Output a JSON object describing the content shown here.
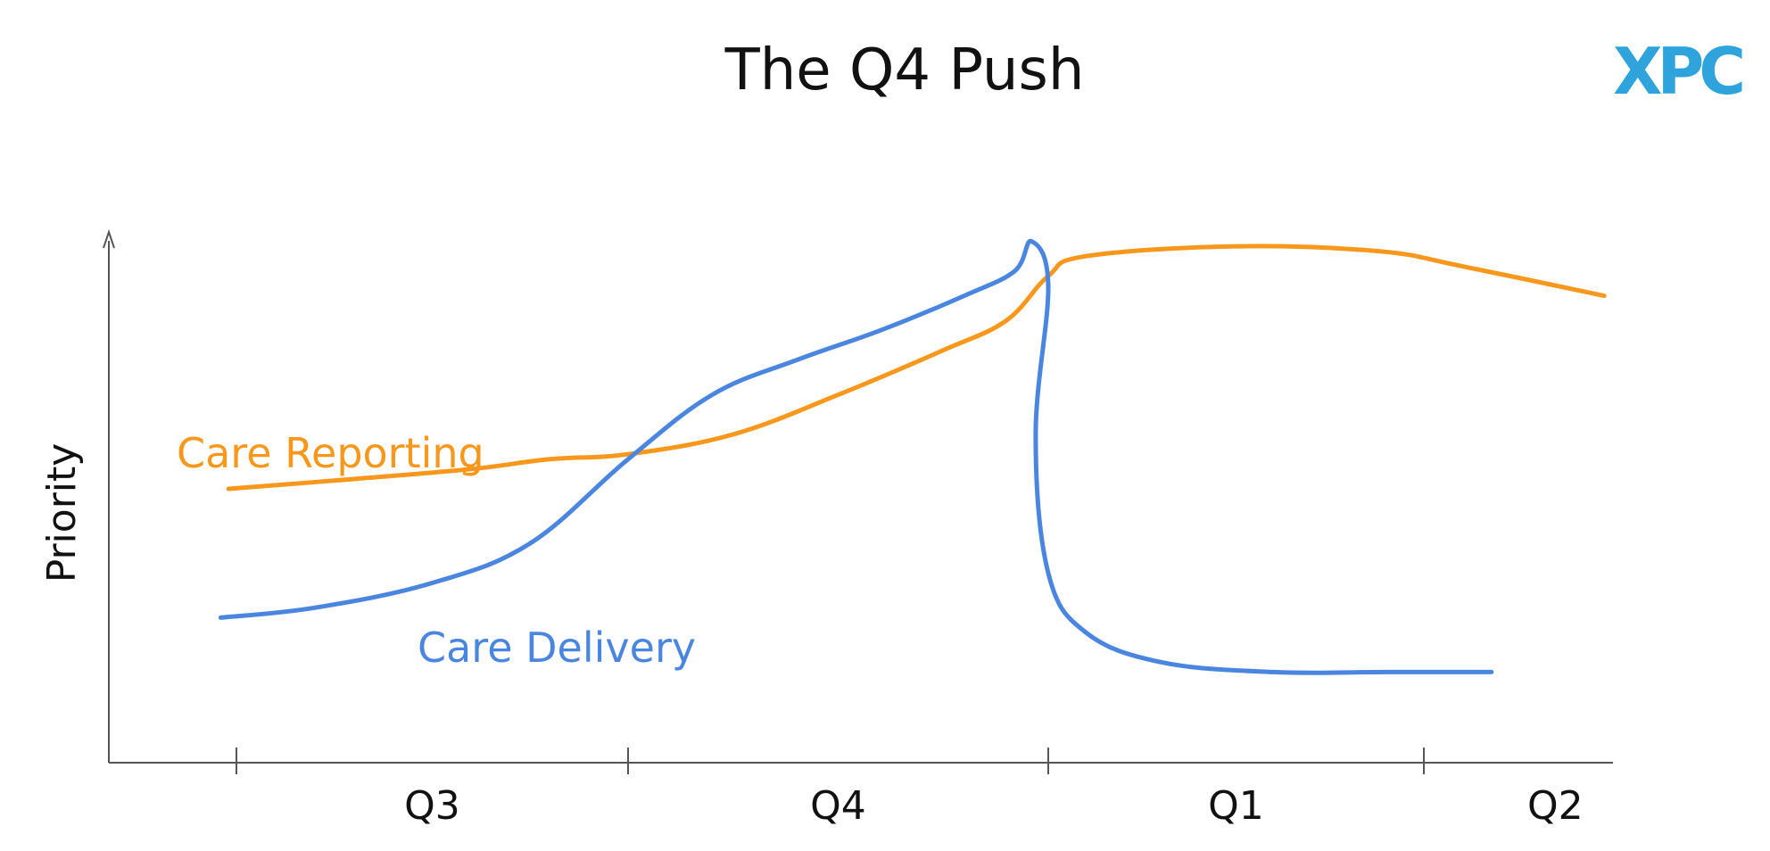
{
  "logo": {
    "text": "XPC",
    "color": "#2ea3dc"
  },
  "chart_data": {
    "type": "line",
    "title": "The Q4 Push",
    "xlabel": "",
    "ylabel": "Priority",
    "categories": [
      "Q3",
      "Q4",
      "Q1",
      "Q2"
    ],
    "x_boundaries": [
      0,
      1,
      2,
      3
    ],
    "xlim": [
      -0.33,
      3.48
    ],
    "ylim": [
      0,
      1
    ],
    "grid": false,
    "legend": "inline labels",
    "series": [
      {
        "name": "Care Reporting",
        "color": "#f7981d",
        "points": [
          [
            -0.02,
            0.49
          ],
          [
            0.3,
            0.51
          ],
          [
            0.6,
            0.53
          ],
          [
            0.8,
            0.55
          ],
          [
            1.0,
            0.56
          ],
          [
            1.25,
            0.6
          ],
          [
            1.5,
            0.68
          ],
          [
            1.75,
            0.77
          ],
          [
            1.9,
            0.83
          ],
          [
            2.0,
            0.92
          ],
          [
            2.1,
            0.96
          ],
          [
            2.5,
            0.98
          ],
          [
            2.88,
            0.97
          ],
          [
            3.1,
            0.94
          ],
          [
            3.48,
            0.88
          ]
        ]
      },
      {
        "name": "Care Delivery",
        "color": "#4a86e0",
        "points": [
          [
            -0.04,
            0.23
          ],
          [
            0.2,
            0.25
          ],
          [
            0.5,
            0.3
          ],
          [
            0.75,
            0.38
          ],
          [
            1.0,
            0.55
          ],
          [
            1.2,
            0.68
          ],
          [
            1.4,
            0.75
          ],
          [
            1.6,
            0.81
          ],
          [
            1.8,
            0.88
          ],
          [
            1.92,
            0.93
          ],
          [
            1.96,
            0.99
          ],
          [
            2.0,
            0.9
          ],
          [
            1.97,
            0.6
          ],
          [
            2.0,
            0.32
          ],
          [
            2.1,
            0.2
          ],
          [
            2.3,
            0.14
          ],
          [
            2.6,
            0.12
          ],
          [
            2.9,
            0.12
          ],
          [
            3.18,
            0.12
          ]
        ]
      }
    ]
  }
}
